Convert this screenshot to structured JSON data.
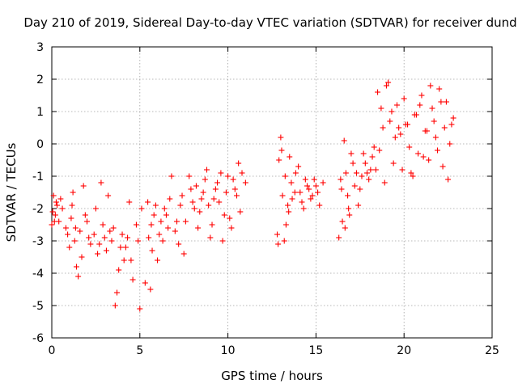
{
  "chart_data": {
    "type": "scatter",
    "title": "Day 210 of 2019, Sidereal Day-to-day VTEC variation (SDTVAR) for receiver dund",
    "xlabel": "GPS time / hours",
    "ylabel": "SDTVAR / TECUs",
    "xlim": [
      0,
      25
    ],
    "ylim": [
      -6,
      3
    ],
    "xticks": [
      0,
      5,
      10,
      15,
      20,
      25
    ],
    "yticks": [
      -6,
      -5,
      -4,
      -3,
      -2,
      -1,
      0,
      1,
      2,
      3
    ],
    "grid": true,
    "marker": "+",
    "color": "#ff0000",
    "series": [
      {
        "name": "SDTVAR",
        "x": [
          0.0,
          0.1,
          0.2,
          0.3,
          0.4,
          0.5,
          0.6,
          0.8,
          1.0,
          1.1,
          1.2,
          1.3,
          1.4,
          1.5,
          1.6,
          1.8,
          2.0,
          2.2,
          2.4,
          2.6,
          2.8,
          3.0,
          3.1,
          3.2,
          3.4,
          3.5,
          3.6,
          3.7,
          3.8,
          4.0,
          4.2,
          4.4,
          4.5,
          4.6,
          4.8,
          4.9,
          5.0,
          5.1,
          5.5,
          5.6,
          5.7,
          5.8,
          5.9,
          6.0,
          6.1,
          6.2,
          6.4,
          6.6,
          6.8,
          7.0,
          7.2,
          7.4,
          7.6,
          7.8,
          8.0,
          8.2,
          8.4,
          8.6,
          8.8,
          9.0,
          9.2,
          9.4,
          9.6,
          9.8,
          10.0,
          10.2,
          10.4,
          10.6,
          10.8,
          11.0,
          12.8,
          12.9,
          13.0,
          13.1,
          13.2,
          13.3,
          13.4,
          13.5,
          13.6,
          13.8,
          14.0,
          14.2,
          14.4,
          14.6,
          14.8,
          15.0,
          15.2,
          15.4,
          16.3,
          16.4,
          16.5,
          16.6,
          16.7,
          16.8,
          16.9,
          17.0,
          17.2,
          17.4,
          17.6,
          17.8,
          18.0,
          18.2,
          18.4,
          18.6,
          18.8,
          19.0,
          19.2,
          19.4,
          19.6,
          19.8,
          20.0,
          20.2,
          20.4,
          20.6,
          20.8,
          21.0,
          21.2,
          21.4,
          21.6,
          21.8,
          22.0,
          22.2,
          22.4,
          22.6,
          22.8
        ],
        "y": [
          -2.5,
          -1.6,
          -2.2,
          -1.9,
          -2.4,
          -1.7,
          -2.0,
          -2.6,
          -3.2,
          -2.3,
          -1.5,
          -3.0,
          -3.8,
          -4.1,
          -2.7,
          -1.3,
          -2.4,
          -3.1,
          -2.8,
          -3.4,
          -1.2,
          -2.9,
          -3.3,
          -1.6,
          -3.0,
          -2.6,
          -5.0,
          -4.6,
          -3.9,
          -2.8,
          -3.2,
          -1.8,
          -3.6,
          -4.2,
          -2.5,
          -3.0,
          -5.1,
          -2.0,
          -2.9,
          -4.5,
          -3.3,
          -2.2,
          -1.9,
          -3.6,
          -2.8,
          -2.4,
          -2.0,
          -2.6,
          -1.0,
          -2.7,
          -3.1,
          -1.6,
          -2.4,
          -1.0,
          -1.8,
          -1.3,
          -2.1,
          -1.5,
          -0.8,
          -2.9,
          -1.7,
          -1.2,
          -0.9,
          -2.2,
          -1.0,
          -2.6,
          -1.4,
          -0.6,
          -0.9,
          -1.2,
          -2.8,
          -0.5,
          0.2,
          -1.6,
          -3.0,
          -2.5,
          -1.9,
          -0.4,
          -1.2,
          -1.5,
          -0.7,
          -1.8,
          -1.1,
          -1.4,
          -1.6,
          -1.3,
          -1.9,
          -1.2,
          -2.9,
          -1.1,
          -2.4,
          0.1,
          -0.9,
          -1.6,
          -2.2,
          -0.3,
          -1.3,
          -1.9,
          -1.0,
          -0.6,
          -1.1,
          -0.4,
          -0.8,
          -0.2,
          0.5,
          1.8,
          0.7,
          -0.6,
          1.2,
          0.3,
          1.4,
          0.6,
          -0.9,
          0.9,
          -0.3,
          1.5,
          0.4,
          -0.5,
          1.1,
          0.2,
          1.7,
          -0.7,
          1.3,
          0.0,
          0.8
        ],
        "x2": [
          0.05,
          0.15,
          0.25,
          0.9,
          1.15,
          1.35,
          1.7,
          1.9,
          2.1,
          2.5,
          2.7,
          2.9,
          3.3,
          3.9,
          4.1,
          4.3,
          5.3,
          5.45,
          5.65,
          6.3,
          6.5,
          6.7,
          7.1,
          7.3,
          7.5,
          7.9,
          8.1,
          8.3,
          8.5,
          8.7,
          8.9,
          9.1,
          9.3,
          9.5,
          9.7,
          9.9,
          10.1,
          10.3,
          10.5,
          10.7,
          12.85,
          13.05,
          13.25,
          13.45,
          13.65,
          13.85,
          14.1,
          14.3,
          14.5,
          14.7,
          14.9,
          15.1,
          16.45,
          16.65,
          16.85,
          17.1,
          17.3,
          17.5,
          17.7,
          17.9,
          18.1,
          18.3,
          18.5,
          18.7,
          18.9,
          19.1,
          19.3,
          19.5,
          19.7,
          19.9,
          20.1,
          20.3,
          20.5,
          20.7,
          20.9,
          21.1,
          21.3,
          21.5,
          21.7,
          21.9,
          22.1,
          22.3,
          22.5,
          22.7
        ],
        "y2": [
          -2.1,
          -2.4,
          -1.8,
          -2.8,
          -1.9,
          -2.6,
          -3.5,
          -2.2,
          -2.9,
          -2.0,
          -3.1,
          -2.5,
          -2.7,
          -3.2,
          -3.6,
          -2.9,
          -4.3,
          -1.8,
          -2.5,
          -3.0,
          -2.2,
          -1.7,
          -2.4,
          -1.9,
          -3.4,
          -1.4,
          -2.0,
          -2.6,
          -1.7,
          -1.1,
          -1.9,
          -2.5,
          -1.4,
          -1.8,
          -3.0,
          -1.5,
          -2.3,
          -1.1,
          -1.6,
          -2.1,
          -3.1,
          -0.2,
          -1.0,
          -2.1,
          -1.7,
          -0.9,
          -1.5,
          -2.0,
          -1.3,
          -1.7,
          -1.1,
          -1.5,
          -1.4,
          -2.6,
          -2.0,
          -0.6,
          -0.9,
          -1.4,
          -0.3,
          -0.9,
          -0.8,
          -0.1,
          1.6,
          1.1,
          -1.2,
          1.9,
          1.0,
          0.2,
          0.5,
          -0.8,
          0.6,
          -0.1,
          -1.0,
          0.9,
          1.2,
          -0.4,
          0.4,
          1.8,
          0.7,
          -0.2,
          1.3,
          0.5,
          -1.1,
          0.6
        ]
      }
    ]
  }
}
